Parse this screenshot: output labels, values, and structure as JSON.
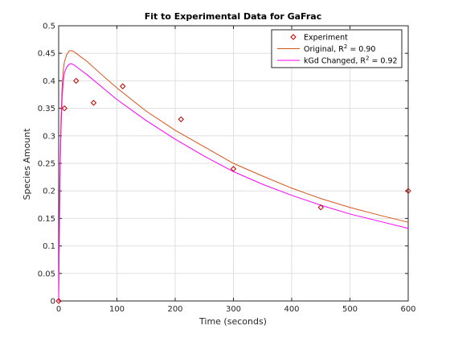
{
  "chart_data": {
    "type": "line",
    "title": "Fit to Experimental Data for GaFrac",
    "xlabel": "Time (seconds)",
    "ylabel": "Species Amount",
    "xlim": [
      0,
      600
    ],
    "ylim": [
      0,
      0.5
    ],
    "xticks": [
      "0",
      "100",
      "200",
      "300",
      "400",
      "500",
      "600"
    ],
    "yticks": [
      "0",
      "0.05",
      "0.1",
      "0.15",
      "0.2",
      "0.25",
      "0.3",
      "0.35",
      "0.4",
      "0.45",
      "0.5"
    ],
    "grid": true,
    "legend_position": "top-right",
    "series": [
      {
        "name": "Experiment",
        "kind": "scatter",
        "marker": "diamond",
        "color": "#c00000",
        "x": [
          0,
          10,
          30,
          60,
          110,
          210,
          300,
          450,
          600
        ],
        "y": [
          0.0,
          0.35,
          0.4,
          0.36,
          0.39,
          0.33,
          0.24,
          0.17,
          0.2
        ]
      },
      {
        "name": "Original, R",
        "name_sup": "2",
        "name_suffix": " = 0.90",
        "kind": "line",
        "color": "#d95319",
        "x": [
          0,
          2,
          4,
          6,
          8,
          10,
          14,
          18,
          22,
          26,
          30,
          40,
          50,
          75,
          100,
          150,
          200,
          250,
          300,
          350,
          400,
          450,
          500,
          550,
          600
        ],
        "y": [
          0.0,
          0.22,
          0.33,
          0.39,
          0.42,
          0.435,
          0.448,
          0.454,
          0.455,
          0.453,
          0.45,
          0.442,
          0.434,
          0.41,
          0.387,
          0.345,
          0.31,
          0.28,
          0.25,
          0.227,
          0.205,
          0.186,
          0.17,
          0.156,
          0.143
        ]
      },
      {
        "name": "kGd Changed, R",
        "name_sup": "2",
        "name_suffix": " = 0.92",
        "kind": "line",
        "color": "#ff00ff",
        "x": [
          0,
          2,
          4,
          6,
          8,
          10,
          14,
          18,
          22,
          26,
          30,
          40,
          50,
          75,
          100,
          150,
          200,
          250,
          300,
          350,
          400,
          450,
          500,
          550,
          600
        ],
        "y": [
          0.0,
          0.21,
          0.31,
          0.37,
          0.4,
          0.415,
          0.425,
          0.43,
          0.431,
          0.429,
          0.426,
          0.418,
          0.41,
          0.388,
          0.366,
          0.328,
          0.294,
          0.263,
          0.235,
          0.212,
          0.192,
          0.174,
          0.158,
          0.145,
          0.132
        ]
      }
    ]
  }
}
